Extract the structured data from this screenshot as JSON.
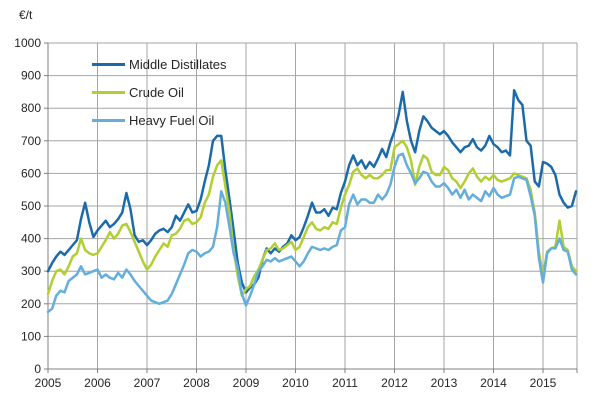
{
  "chart_data": {
    "type": "line",
    "title": "",
    "unit_label": "€/t",
    "x_first_point": "2005-01",
    "x_last_point": "2015-09",
    "points_per_year": 12,
    "x_tick_labels": [
      "2005",
      "2006",
      "2007",
      "2008",
      "2009",
      "2010",
      "2011",
      "2012",
      "2013",
      "2014",
      "2015"
    ],
    "ylim": [
      0,
      1000
    ],
    "y_tick_step": 100,
    "y_tick_labels": [
      "0",
      "100",
      "200",
      "300",
      "400",
      "500",
      "600",
      "700",
      "800",
      "900",
      "1000"
    ],
    "grid": true,
    "legend_position": "top-left-inside",
    "axis_color": "#808080",
    "grid_color": "#a6a6a6",
    "text_color": "#262626",
    "series": [
      {
        "name": "Middle Distillates",
        "color": "#1b6bab",
        "values": [
          300,
          325,
          345,
          360,
          350,
          365,
          380,
          395,
          460,
          510,
          450,
          405,
          425,
          440,
          455,
          435,
          445,
          460,
          480,
          540,
          490,
          410,
          390,
          395,
          380,
          395,
          415,
          425,
          430,
          420,
          435,
          470,
          455,
          480,
          505,
          480,
          485,
          520,
          575,
          625,
          700,
          715,
          715,
          610,
          520,
          425,
          325,
          265,
          235,
          250,
          260,
          280,
          335,
          370,
          355,
          370,
          360,
          375,
          385,
          410,
          395,
          405,
          435,
          470,
          510,
          480,
          480,
          490,
          470,
          495,
          490,
          540,
          575,
          625,
          655,
          625,
          640,
          615,
          635,
          620,
          645,
          675,
          650,
          695,
          730,
          780,
          850,
          760,
          700,
          665,
          730,
          775,
          760,
          740,
          730,
          720,
          730,
          715,
          695,
          680,
          665,
          680,
          685,
          705,
          680,
          670,
          685,
          715,
          690,
          680,
          665,
          670,
          655,
          855,
          825,
          810,
          700,
          685,
          575,
          560,
          635,
          630,
          620,
          595,
          535,
          510,
          495,
          500,
          545
        ]
      },
      {
        "name": "Crude Oil",
        "color": "#b2cf32",
        "values": [
          230,
          270,
          300,
          305,
          290,
          315,
          345,
          355,
          400,
          365,
          355,
          350,
          355,
          375,
          395,
          420,
          400,
          415,
          440,
          445,
          420,
          390,
          360,
          330,
          305,
          320,
          345,
          365,
          385,
          375,
          410,
          415,
          430,
          455,
          460,
          445,
          450,
          465,
          510,
          535,
          590,
          625,
          640,
          560,
          480,
          365,
          285,
          225,
          245,
          255,
          285,
          305,
          335,
          365,
          370,
          385,
          365,
          370,
          380,
          390,
          365,
          375,
          405,
          435,
          450,
          430,
          425,
          435,
          430,
          450,
          445,
          495,
          535,
          565,
          605,
          615,
          595,
          585,
          595,
          585,
          585,
          595,
          610,
          610,
          680,
          690,
          700,
          680,
          640,
          565,
          620,
          655,
          645,
          605,
          595,
          595,
          620,
          610,
          585,
          575,
          555,
          575,
          600,
          615,
          590,
          575,
          590,
          580,
          595,
          580,
          575,
          580,
          585,
          600,
          595,
          590,
          585,
          550,
          480,
          360,
          285,
          360,
          370,
          375,
          455,
          375,
          365,
          315,
          300
        ]
      },
      {
        "name": "Heavy Fuel Oil",
        "color": "#63aedc",
        "values": [
          175,
          185,
          225,
          240,
          235,
          270,
          280,
          290,
          315,
          290,
          295,
          300,
          305,
          280,
          290,
          280,
          275,
          295,
          280,
          305,
          290,
          270,
          255,
          240,
          225,
          210,
          205,
          200,
          205,
          210,
          230,
          260,
          290,
          320,
          355,
          365,
          360,
          345,
          355,
          360,
          375,
          435,
          545,
          510,
          435,
          355,
          310,
          230,
          195,
          225,
          260,
          300,
          315,
          335,
          330,
          340,
          330,
          335,
          340,
          345,
          330,
          315,
          330,
          355,
          375,
          370,
          365,
          370,
          365,
          375,
          380,
          425,
          435,
          505,
          535,
          505,
          520,
          520,
          510,
          510,
          535,
          520,
          535,
          565,
          620,
          655,
          660,
          625,
          600,
          570,
          585,
          605,
          600,
          575,
          560,
          560,
          570,
          555,
          535,
          550,
          525,
          550,
          520,
          535,
          525,
          515,
          545,
          530,
          555,
          535,
          525,
          530,
          535,
          585,
          590,
          585,
          580,
          530,
          470,
          340,
          265,
          355,
          370,
          370,
          400,
          365,
          360,
          305,
          290
        ]
      }
    ]
  }
}
